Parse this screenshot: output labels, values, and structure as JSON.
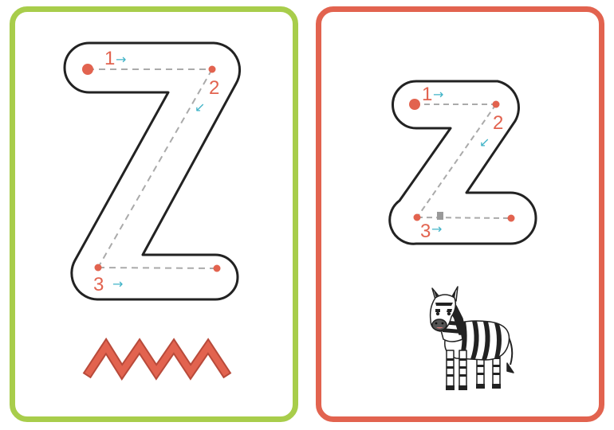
{
  "colors": {
    "upper_card_border": "#a8cd4b",
    "lower_card_border": "#e2634f",
    "letter_outline": "#222222",
    "guide_dash": "#aaaaaa",
    "dot": "#e2634f",
    "number": "#e2634f",
    "arrow": "#42b4c8",
    "zigzag_fill": "#e2634f",
    "zigzag_stroke": "#b84a3a"
  },
  "uppercase_card": {
    "letter_shape": "Z",
    "strokes": [
      {
        "number": "1",
        "arrow": "→"
      },
      {
        "number": "2",
        "arrow": "↙"
      },
      {
        "number": "3",
        "arrow": "→"
      }
    ],
    "decoration": "zigzag-pattern"
  },
  "lowercase_card": {
    "letter_shape": "z",
    "strokes": [
      {
        "number": "1",
        "arrow": "→"
      },
      {
        "number": "2",
        "arrow": "↙"
      },
      {
        "number": "3",
        "arrow": "→"
      }
    ],
    "picture": "zebra-illustration"
  }
}
